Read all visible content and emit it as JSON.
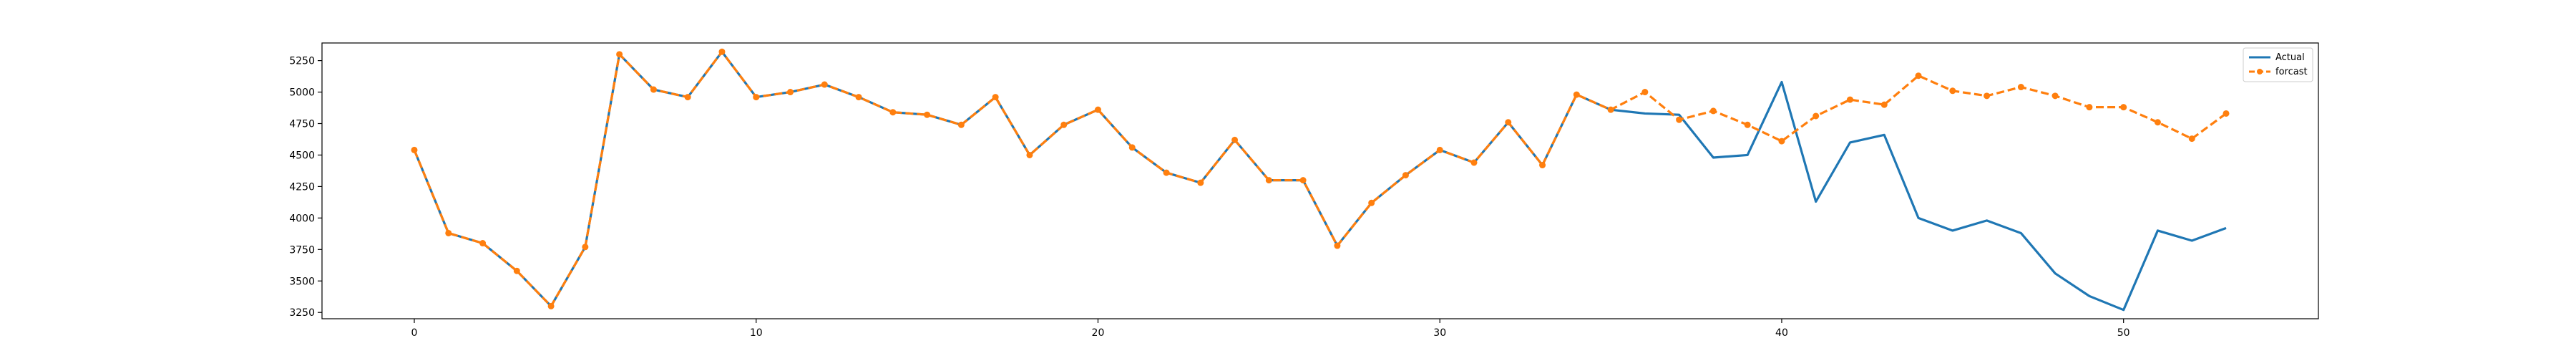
{
  "chart_data": {
    "type": "line",
    "title": "",
    "xlabel": "",
    "ylabel": "",
    "xlim": [
      -2.7,
      55.7
    ],
    "ylim": [
      3200,
      5390
    ],
    "grid": false,
    "legend_position": "top-right",
    "x_ticks": [
      {
        "value": 0,
        "label": "0"
      },
      {
        "value": 10,
        "label": "10"
      },
      {
        "value": 20,
        "label": "20"
      },
      {
        "value": 30,
        "label": "30"
      },
      {
        "value": 40,
        "label": "40"
      },
      {
        "value": 50,
        "label": "50"
      }
    ],
    "y_ticks": [
      {
        "value": 3250,
        "label": "3250"
      },
      {
        "value": 3500,
        "label": "3500"
      },
      {
        "value": 3750,
        "label": "3750"
      },
      {
        "value": 4000,
        "label": "4000"
      },
      {
        "value": 4250,
        "label": "4250"
      },
      {
        "value": 4500,
        "label": "4500"
      },
      {
        "value": 4750,
        "label": "4750"
      },
      {
        "value": 5000,
        "label": "5000"
      },
      {
        "value": 5250,
        "label": "5250"
      }
    ],
    "series": [
      {
        "name": "Actual",
        "color": "#1f77b4",
        "style": "solid",
        "marker": "none",
        "x": [
          0,
          1,
          2,
          3,
          4,
          5,
          6,
          7,
          8,
          9,
          10,
          11,
          12,
          13,
          14,
          15,
          16,
          17,
          18,
          19,
          20,
          21,
          22,
          23,
          24,
          25,
          26,
          27,
          28,
          29,
          30,
          31,
          32,
          33,
          34,
          35,
          36,
          37,
          38,
          39,
          40,
          41,
          42,
          43,
          44,
          45,
          46,
          47,
          48,
          49,
          50,
          51,
          52,
          53
        ],
        "values": [
          4540,
          3880,
          3800,
          3580,
          3300,
          3770,
          5300,
          5020,
          4960,
          5320,
          4960,
          5000,
          5060,
          4960,
          4840,
          4820,
          4740,
          4960,
          4500,
          4740,
          4860,
          4560,
          4360,
          4280,
          4620,
          4300,
          4300,
          3780,
          4120,
          4340,
          4540,
          4440,
          4760,
          4420,
          4980,
          4860,
          4830,
          4820,
          4480,
          4500,
          5080,
          4130,
          4600,
          4660,
          4000,
          3900,
          3980,
          3880,
          3560,
          3380,
          3270,
          3900,
          3820,
          3920
        ]
      },
      {
        "name": "forcast",
        "color": "#ff7f0e",
        "style": "dashed",
        "marker": "circle",
        "x": [
          0,
          1,
          2,
          3,
          4,
          5,
          6,
          7,
          8,
          9,
          10,
          11,
          12,
          13,
          14,
          15,
          16,
          17,
          18,
          19,
          20,
          21,
          22,
          23,
          24,
          25,
          26,
          27,
          28,
          29,
          30,
          31,
          32,
          33,
          34,
          35,
          36,
          37,
          38,
          39,
          40,
          41,
          42,
          43,
          44,
          45,
          46,
          47,
          48,
          49,
          50,
          51,
          52,
          53
        ],
        "values": [
          4540,
          3880,
          3800,
          3580,
          3300,
          3770,
          5300,
          5020,
          4960,
          5320,
          4960,
          5000,
          5060,
          4960,
          4840,
          4820,
          4740,
          4960,
          4500,
          4740,
          4860,
          4560,
          4360,
          4280,
          4620,
          4300,
          4300,
          3780,
          4120,
          4340,
          4540,
          4440,
          4760,
          4420,
          4980,
          4860,
          5000,
          4780,
          4850,
          4740,
          4610,
          4810,
          4940,
          4900,
          5130,
          5010,
          4970,
          5040,
          4970,
          4880,
          4880,
          4760,
          4630,
          4830
        ]
      }
    ]
  }
}
